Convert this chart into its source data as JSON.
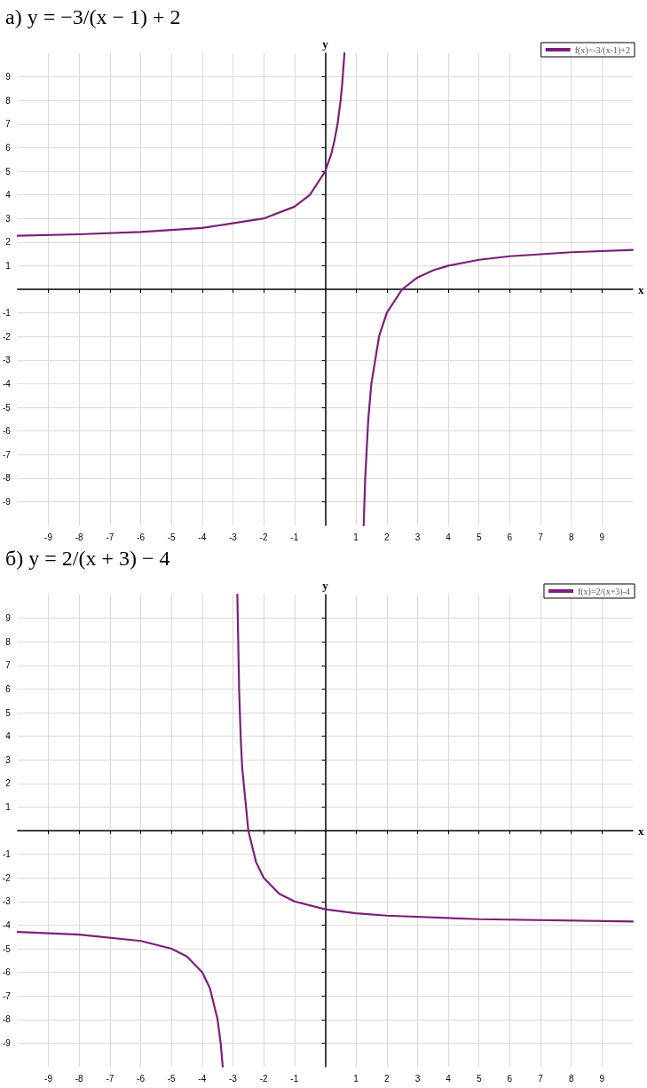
{
  "chart_data": [
    {
      "type": "line",
      "title": "а) y = −3/(x − 1) + 2",
      "xlabel": "x",
      "ylabel": "y",
      "xlim": [
        -10,
        10
      ],
      "ylim": [
        -10,
        10
      ],
      "xticks": [
        -9,
        -8,
        -7,
        -6,
        -5,
        -4,
        -3,
        -2,
        -1,
        1,
        2,
        3,
        4,
        5,
        6,
        7,
        8,
        9
      ],
      "yticks": [
        -9,
        -8,
        -7,
        -6,
        -5,
        -4,
        -3,
        -2,
        -1,
        1,
        2,
        3,
        4,
        5,
        6,
        7,
        8,
        9
      ],
      "grid": true,
      "legend": "top right",
      "marker": "none",
      "line_style": "solid",
      "series": [
        {
          "name": "f(x)=-3/(x-1)+2",
          "color": "#7b1f7b",
          "x": [
            -10,
            -8,
            -6,
            -4,
            -2,
            -1,
            -0.5,
            0,
            0.2,
            0.3,
            0.4,
            0.5,
            0.55,
            0.625,
            1,
            1.25,
            1.3,
            1.4,
            1.5,
            1.75,
            2,
            2.5,
            3,
            3.5,
            4,
            5,
            6,
            8,
            10
          ],
          "values": [
            2.27,
            2.33,
            2.43,
            2.6,
            3,
            3.5,
            4,
            5,
            5.75,
            6.3,
            7,
            8,
            8.67,
            10,
            null,
            -10,
            -8,
            -5.5,
            -4,
            -2,
            -1,
            0,
            0.5,
            0.8,
            1,
            1.25,
            1.4,
            1.57,
            1.67
          ]
        }
      ]
    },
    {
      "type": "line",
      "title": "б) y = 2/(x + 3) − 4",
      "xlabel": "x",
      "ylabel": "y",
      "xlim": [
        -10,
        10
      ],
      "ylim": [
        -10,
        10
      ],
      "xticks": [
        -9,
        -8,
        -7,
        -6,
        -5,
        -4,
        -3,
        -2,
        -1,
        1,
        2,
        3,
        4,
        5,
        6,
        7,
        8,
        9
      ],
      "yticks": [
        -9,
        -8,
        -7,
        -6,
        -5,
        -4,
        -3,
        -2,
        -1,
        1,
        2,
        3,
        4,
        5,
        6,
        7,
        8,
        9
      ],
      "grid": true,
      "legend": "top right",
      "marker": "none",
      "line_style": "solid",
      "series": [
        {
          "name": "f(x)=2/(x+3)-4",
          "color": "#7b1f7b",
          "x": [
            -10,
            -8,
            -6,
            -5,
            -4.5,
            -4,
            -3.75,
            -3.5,
            -3.4,
            -3.333,
            -3,
            -2.857,
            -2.8,
            -2.75,
            -2.7,
            -2.5,
            -2.25,
            -2,
            -1.5,
            -1,
            0,
            1,
            2,
            5,
            10
          ],
          "values": [
            -4.29,
            -4.4,
            -4.67,
            -5,
            -5.33,
            -6,
            -6.67,
            -8,
            -9,
            -10,
            null,
            10,
            6,
            4,
            2.67,
            0,
            -1.33,
            -2,
            -2.67,
            -3,
            -3.33,
            -3.5,
            -3.6,
            -3.75,
            -3.85
          ]
        }
      ]
    }
  ]
}
